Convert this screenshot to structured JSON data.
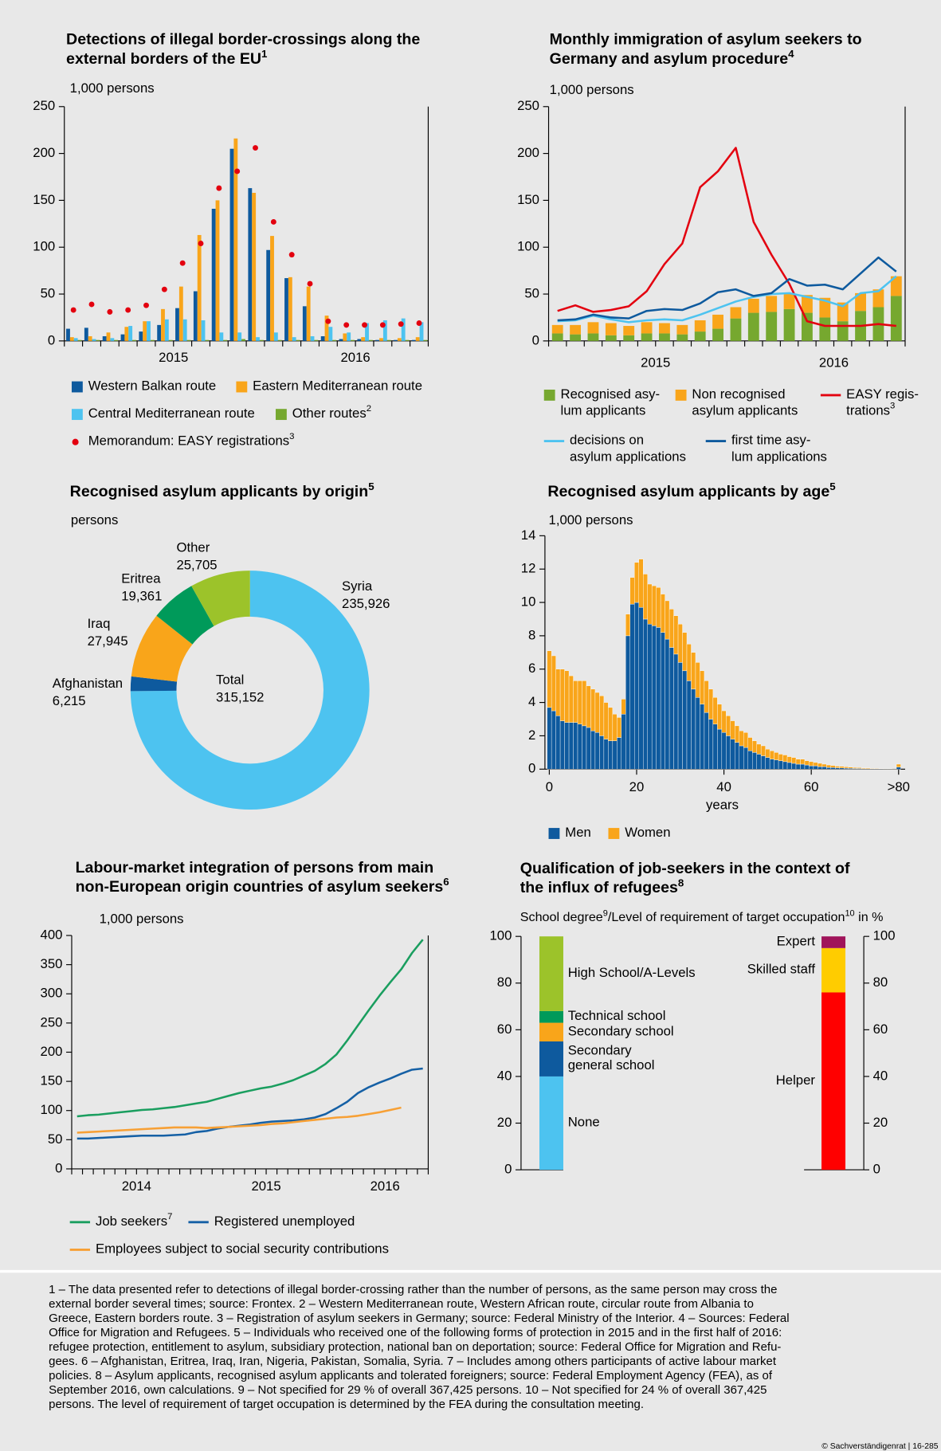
{
  "chart_data": [
    {
      "type": "bar",
      "title": [
        "Detections of illegal border-crossings along the",
        "external borders of the EU"
      ],
      "title_note": "1",
      "ylabel": "1,000 persons",
      "categories": [
        null,
        null,
        null,
        null,
        null,
        "2015",
        null,
        null,
        null,
        null,
        null,
        null,
        null,
        null,
        null,
        "2016",
        null,
        null,
        null,
        null
      ],
      "ylim": [
        0,
        250
      ],
      "yticks": [
        0,
        50,
        100,
        150,
        200,
        250
      ],
      "series": [
        {
          "name": "Western Balkan route",
          "color": "#0e5a9e",
          "values": [
            13,
            14,
            5,
            7,
            10,
            17,
            35,
            53,
            141,
            205,
            163,
            97,
            67,
            37,
            5,
            2,
            2,
            1,
            1,
            1
          ]
        },
        {
          "name": "Eastern Mediterranean route",
          "color": "#f9a51a",
          "values": [
            4,
            5,
            9,
            15,
            21,
            34,
            58,
            113,
            150,
            216,
            158,
            112,
            68,
            58,
            27,
            8,
            4,
            3,
            3,
            4
          ]
        },
        {
          "name": "Central Mediterranean route",
          "color": "#4dc3f0",
          "values": [
            3,
            2,
            3,
            16,
            21,
            23,
            23,
            22,
            9,
            9,
            4,
            9,
            4,
            5,
            15,
            9,
            19,
            22,
            24,
            20
          ]
        },
        {
          "name": "Other routes",
          "note": "2",
          "color": "#76a82f",
          "values": [
            1,
            1,
            1,
            1,
            1,
            1,
            1,
            1,
            1,
            2,
            1,
            1,
            1,
            1,
            1,
            1,
            1,
            1,
            1,
            1
          ]
        },
        {
          "name": "Memorandum: EASY registrations",
          "note": "3",
          "type": "scatter",
          "color": "#e3000f",
          "values": [
            33,
            39,
            31,
            33,
            38,
            55,
            83,
            104,
            163,
            181,
            206,
            127,
            92,
            61,
            21,
            17,
            17,
            17,
            18,
            19
          ]
        }
      ]
    },
    {
      "type": "bar",
      "stacked": true,
      "title": [
        "Monthly immigration of asylum seekers to",
        "Germany and asylum procedure"
      ],
      "title_note": "4",
      "ylabel": "1,000 persons",
      "categories": [
        null,
        null,
        null,
        null,
        null,
        "2015",
        null,
        null,
        null,
        null,
        null,
        null,
        null,
        null,
        null,
        "2016",
        null,
        null,
        null,
        null
      ],
      "ylim": [
        0,
        250
      ],
      "yticks": [
        0,
        50,
        100,
        150,
        200,
        250
      ],
      "series": [
        {
          "name": [
            "Recognised asy-",
            "lum applicants"
          ],
          "color": "#76a82f",
          "values": [
            8,
            7,
            8,
            6,
            6,
            8,
            8,
            7,
            10,
            13,
            24,
            30,
            31,
            34,
            30,
            25,
            21,
            32,
            36,
            48
          ]
        },
        {
          "name": [
            "Non recognised",
            "asylum applicants"
          ],
          "color": "#f9a51a",
          "values": [
            9,
            10,
            12,
            13,
            10,
            12,
            11,
            10,
            12,
            15,
            12,
            15,
            17,
            16,
            19,
            21,
            20,
            19,
            19,
            21
          ]
        },
        {
          "name": [
            "EASY regis-",
            "trations"
          ],
          "note": "3",
          "type": "line",
          "color": "#e3000f",
          "values": [
            32,
            38,
            31,
            33,
            37,
            53,
            82,
            104,
            164,
            181,
            206,
            127,
            92,
            61,
            21,
            16,
            16,
            16,
            18,
            16
          ]
        },
        {
          "name": [
            "decisions on",
            "asylum applications"
          ],
          "type": "line",
          "color": "#4dc3f0",
          "values": [
            21,
            22,
            27,
            23,
            20,
            22,
            23,
            22,
            28,
            35,
            42,
            47,
            50,
            51,
            47,
            43,
            37,
            51,
            53,
            69
          ]
        },
        {
          "name": [
            "first time asy-",
            "lum applications"
          ],
          "type": "line",
          "color": "#0e5a9e",
          "values": [
            22,
            23,
            28,
            25,
            24,
            32,
            34,
            33,
            40,
            52,
            55,
            48,
            51,
            66,
            59,
            60,
            55,
            72,
            89,
            74
          ]
        }
      ]
    },
    {
      "type": "pie",
      "title": "Recognised asylum applicants by origin",
      "title_note": "5",
      "ylabel": "persons",
      "categories": [
        "Syria",
        "Afghanistan",
        "Iraq",
        "Eritrea",
        "Other"
      ],
      "values": [
        235926,
        6215,
        27945,
        19361,
        25705
      ],
      "value_labels": [
        "235,926",
        "6,215",
        "27,945",
        "19,361",
        "25,705"
      ],
      "colors": [
        "#4dc3f0",
        "#0e5a9e",
        "#f9a51a",
        "#009a5a",
        "#9cc32a"
      ],
      "total_label": "Total",
      "total": 315152,
      "total_value_label": "315,152"
    },
    {
      "type": "bar",
      "stacked": true,
      "title": "Recognised asylum applicants by age",
      "title_note": "5",
      "ylabel": "1,000 persons",
      "xlabel": "years",
      "x": [
        0,
        1,
        2,
        3,
        4,
        5,
        6,
        7,
        8,
        9,
        10,
        11,
        12,
        13,
        14,
        15,
        16,
        17,
        18,
        19,
        20,
        21,
        22,
        23,
        24,
        25,
        26,
        27,
        28,
        29,
        30,
        31,
        32,
        33,
        34,
        35,
        36,
        37,
        38,
        39,
        40,
        41,
        42,
        43,
        44,
        45,
        46,
        47,
        48,
        49,
        50,
        51,
        52,
        53,
        54,
        55,
        56,
        57,
        58,
        59,
        60,
        61,
        62,
        63,
        64,
        65,
        66,
        67,
        68,
        69,
        70,
        71,
        72,
        73,
        74,
        75,
        76,
        77,
        78,
        79,
        80
      ],
      "xlim": [
        -1,
        81.5
      ],
      "xticks": [
        0,
        20,
        40,
        60,
        {
          "value": 80,
          "label": ">80"
        }
      ],
      "ylim": [
        0,
        14
      ],
      "yticks": [
        0,
        2,
        4,
        6,
        8,
        10,
        12,
        14
      ],
      "series": [
        {
          "name": "Men",
          "color": "#0e5a9e",
          "values": [
            3.7,
            3.5,
            3.2,
            2.9,
            2.8,
            2.8,
            2.8,
            2.7,
            2.6,
            2.5,
            2.3,
            2.2,
            2.0,
            1.8,
            1.7,
            1.7,
            1.9,
            3.3,
            8.0,
            9.9,
            10.0,
            9.7,
            9.0,
            8.7,
            8.6,
            8.5,
            8.2,
            7.8,
            7.3,
            6.9,
            6.4,
            5.9,
            5.3,
            4.8,
            4.3,
            3.9,
            3.4,
            3.0,
            2.7,
            2.4,
            2.2,
            2.0,
            1.8,
            1.6,
            1.4,
            1.3,
            1.1,
            1.0,
            0.9,
            0.8,
            0.7,
            0.6,
            0.55,
            0.5,
            0.45,
            0.4,
            0.35,
            0.3,
            0.3,
            0.25,
            0.2,
            0.2,
            0.15,
            0.15,
            0.1,
            0.1,
            0.08,
            0.07,
            0.06,
            0.05,
            0.04,
            0.04,
            0.03,
            0.03,
            0.02,
            0.02,
            0.02,
            0.01,
            0.01,
            0.01,
            0.12
          ]
        },
        {
          "name": "Women",
          "color": "#f9a51a",
          "values": [
            3.4,
            3.3,
            2.8,
            3.1,
            3.1,
            2.8,
            2.5,
            2.6,
            2.7,
            2.5,
            2.5,
            2.4,
            2.4,
            2.2,
            2.0,
            1.6,
            1.2,
            0.9,
            1.3,
            1.6,
            2.4,
            2.9,
            2.7,
            2.4,
            2.4,
            2.4,
            2.3,
            2.3,
            2.3,
            2.3,
            2.3,
            2.3,
            2.2,
            2.2,
            2.1,
            2.0,
            1.9,
            1.8,
            1.6,
            1.5,
            1.3,
            1.2,
            1.1,
            1.0,
            0.9,
            0.9,
            0.8,
            0.7,
            0.6,
            0.6,
            0.5,
            0.5,
            0.45,
            0.4,
            0.4,
            0.35,
            0.35,
            0.3,
            0.3,
            0.25,
            0.25,
            0.2,
            0.2,
            0.15,
            0.15,
            0.12,
            0.1,
            0.1,
            0.08,
            0.07,
            0.06,
            0.05,
            0.04,
            0.04,
            0.03,
            0.03,
            0.02,
            0.02,
            0.02,
            0.01,
            0.18
          ]
        }
      ]
    },
    {
      "type": "line",
      "title": [
        "Labour-market integration of persons from main",
        "non-European origin countries of asylum seekers"
      ],
      "title_note": "6",
      "ylabel": "1,000 persons",
      "categories": [
        null,
        null,
        null,
        null,
        null,
        "2014",
        null,
        null,
        null,
        null,
        null,
        null,
        null,
        null,
        null,
        null,
        null,
        "2015",
        null,
        null,
        null,
        null,
        null,
        null,
        null,
        null,
        null,
        null,
        "2016",
        null,
        null,
        null,
        null
      ],
      "ylim": [
        0,
        400
      ],
      "yticks": [
        0,
        50,
        100,
        150,
        200,
        250,
        300,
        350,
        400
      ],
      "series": [
        {
          "name": "Job seekers",
          "note": "7",
          "type": "line",
          "color": "#1a9e5f",
          "values": [
            90,
            92,
            93,
            95,
            97,
            99,
            101,
            102,
            104,
            106,
            109,
            112,
            115,
            120,
            125,
            130,
            134,
            138,
            141,
            146,
            152,
            160,
            168,
            180,
            196,
            220,
            246,
            272,
            297,
            320,
            342,
            370,
            393
          ]
        },
        {
          "name": "Registered unemployed",
          "type": "line",
          "color": "#1560a5",
          "values": [
            52,
            52,
            53,
            54,
            55,
            56,
            57,
            57,
            57,
            58,
            59,
            63,
            65,
            69,
            72,
            74,
            76,
            79,
            81,
            82,
            83,
            85,
            88,
            94,
            104,
            115,
            130,
            140,
            148,
            155,
            163,
            170,
            172
          ]
        },
        {
          "name": "Employees subject to social security contributions",
          "type": "line",
          "color": "#f7a035",
          "values": [
            62,
            63,
            64,
            65,
            66,
            67,
            68,
            69,
            70,
            71,
            71,
            71,
            70,
            71,
            72,
            73,
            74,
            75,
            77,
            78,
            80,
            82,
            84,
            86,
            88,
            89,
            91,
            94,
            97,
            101,
            105,
            null,
            null
          ]
        }
      ]
    },
    {
      "type": "bar",
      "stacked": true,
      "title": [
        "Qualification of job-seekers in the context of",
        "the influx of refugees"
      ],
      "title_note": "8",
      "subtitle": [
        {
          "text": "School degree"
        },
        {
          "sup": "9"
        },
        {
          "text": "/Level of requirement of target occupation"
        },
        {
          "sup": "10"
        },
        {
          "text": " in %"
        }
      ],
      "ylim": [
        0,
        100
      ],
      "yticks": [
        0,
        20,
        40,
        60,
        80,
        100
      ],
      "bars": [
        {
          "segments": [
            {
              "name": "None",
              "color": "#4dc3f0",
              "value": 40
            },
            {
              "name": [
                "Secondary",
                "general school"
              ],
              "color": "#0e5a9e",
              "value": 15
            },
            {
              "name": "Secondary school",
              "color": "#f9a51a",
              "value": 8
            },
            {
              "name": "Technical school",
              "color": "#009a5a",
              "value": 5
            },
            {
              "name": "High School/A-Levels",
              "color": "#9cc32a",
              "value": 32
            }
          ]
        },
        {
          "segments": [
            {
              "name": "Helper",
              "color": "#ff0000",
              "value": 76
            },
            {
              "name": "Skilled staff",
              "color": "#ffcc00",
              "value": 19
            },
            {
              "name": "Expert",
              "color": "#a0145a",
              "value": 5
            }
          ]
        }
      ]
    }
  ],
  "footnotes": [
    "1 – The data presented refer to detections of illegal border-crossing rather than the number of persons, as the same person may cross the",
    "external border several times; source: Frontex.  2 – Western Mediterranean route, Western African route, circular route from Albania to",
    "Greece, Eastern borders route.  3 – Registration of asylum seekers in Germany; source: Federal Ministry of the Interior.  4 – Sources: Federal",
    "Office for Migration and Refugees.  5 – Individuals who received one of the following forms of protection in 2015 and in the first half of 2016:",
    "refugee protection, entitlement to asylum, subsidiary protection, national ban on deportation; source: Federal Office for Migration and Refu-",
    "gees.  6 – Afghanistan, Eritrea, Iraq, Iran, Nigeria, Pakistan, Somalia, Syria.  7 – Includes among others participants of active labour market",
    "policies.  8 – Asylum applicants, recognised asylum applicants and tolerated foreigners; source: Federal Employment Agency (FEA), as of",
    "September 2016, own calculations.  9 – Not specified for 29 % of overall 367,425 persons.  10 – Not specified for 24 % of overall 367,425",
    "persons. The level of requirement of target occupation is determined by the FEA during the consultation meeting."
  ],
  "copyright": "© Sachverständigenrat | 16-285"
}
